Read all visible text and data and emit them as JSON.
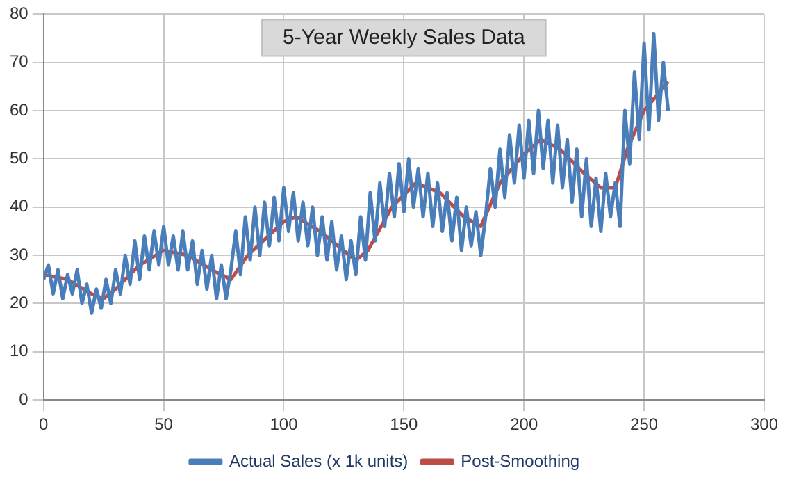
{
  "chart_data": {
    "type": "line",
    "title": "5-Year Weekly Sales Data",
    "series": [
      {
        "name": "Actual Sales (x 1k units)",
        "color": "#4a7ebb",
        "x": [
          0,
          2,
          4,
          6,
          8,
          10,
          12,
          14,
          16,
          18,
          20,
          22,
          24,
          26,
          28,
          30,
          32,
          34,
          36,
          38,
          40,
          42,
          44,
          46,
          48,
          50,
          52,
          54,
          56,
          58,
          60,
          62,
          64,
          66,
          68,
          70,
          72,
          74,
          76,
          78,
          80,
          82,
          84,
          86,
          88,
          90,
          92,
          94,
          96,
          98,
          100,
          102,
          104,
          106,
          108,
          110,
          112,
          114,
          116,
          118,
          120,
          122,
          124,
          126,
          128,
          130,
          132,
          134,
          136,
          138,
          140,
          142,
          144,
          146,
          148,
          150,
          152,
          154,
          156,
          158,
          160,
          162,
          164,
          166,
          168,
          170,
          172,
          174,
          176,
          178,
          180,
          182,
          184,
          186,
          188,
          190,
          192,
          194,
          196,
          198,
          200,
          202,
          204,
          206,
          208,
          210,
          212,
          214,
          216,
          218,
          220,
          222,
          224,
          226,
          228,
          230,
          232,
          234,
          236,
          238,
          240,
          242,
          244,
          246,
          248,
          250,
          252,
          254,
          256,
          258,
          260
        ],
        "values": [
          25,
          28,
          22,
          27,
          21,
          26,
          22,
          27,
          20,
          24,
          18,
          23,
          19,
          25,
          20,
          27,
          22,
          30,
          24,
          33,
          25,
          34,
          27,
          35,
          28,
          36,
          28,
          34,
          27,
          35,
          27,
          33,
          24,
          31,
          23,
          30,
          21,
          28,
          21,
          27,
          35,
          26,
          38,
          29,
          40,
          30,
          41,
          32,
          42,
          33,
          44,
          35,
          43,
          33,
          41,
          32,
          40,
          30,
          38,
          29,
          37,
          27,
          34,
          25,
          33,
          26,
          38,
          29,
          43,
          33,
          45,
          36,
          47,
          38,
          49,
          39,
          50,
          40,
          48,
          38,
          47,
          36,
          45,
          35,
          43,
          33,
          42,
          31,
          40,
          32,
          39,
          30,
          38,
          48,
          40,
          52,
          42,
          55,
          45,
          57,
          46,
          58,
          47,
          60,
          48,
          58,
          45,
          57,
          44,
          54,
          41,
          52,
          38,
          50,
          36,
          46,
          35,
          47,
          38,
          45,
          36,
          60,
          49,
          68,
          54,
          74,
          56,
          76,
          58,
          70,
          60
        ]
      },
      {
        "name": "Post-Smoothing",
        "color": "#be4b48",
        "x": [
          0,
          10,
          20,
          25,
          30,
          40,
          50,
          60,
          70,
          78,
          85,
          100,
          105,
          115,
          125,
          130,
          135,
          145,
          155,
          165,
          175,
          182,
          190,
          200,
          207,
          215,
          225,
          232,
          238,
          243,
          250,
          255,
          260
        ],
        "values": [
          26,
          25,
          22,
          21,
          23,
          28,
          31,
          30,
          27,
          25,
          30,
          37,
          38,
          35,
          31,
          29,
          31,
          40,
          45,
          43,
          38,
          36,
          45,
          51,
          54,
          52,
          47,
          44,
          44,
          52,
          60,
          63,
          66
        ]
      }
    ],
    "xlim": [
      0,
      300
    ],
    "xticks": [
      0,
      50,
      100,
      150,
      200,
      250,
      300
    ],
    "ylim": [
      0,
      80
    ],
    "yticks": [
      0,
      10,
      20,
      30,
      40,
      50,
      60,
      70,
      80
    ],
    "grid": true,
    "legend": "bottom",
    "marker": "none",
    "line_style": "solid"
  }
}
